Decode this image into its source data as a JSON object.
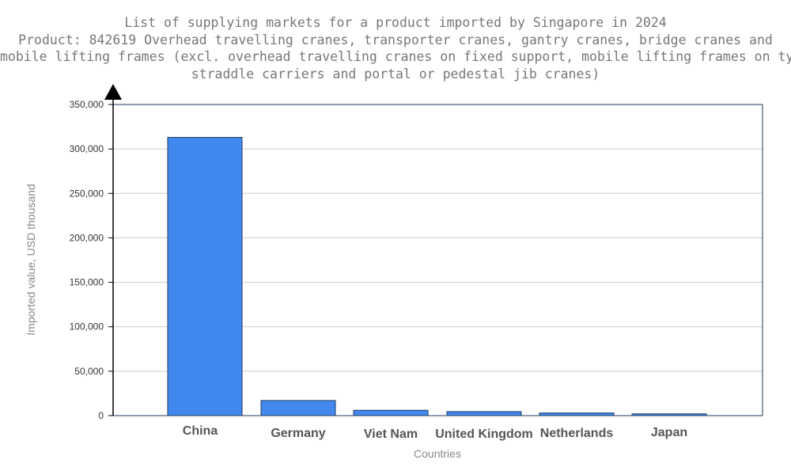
{
  "chart_data": {
    "type": "bar",
    "title": "List of supplying markets for a product imported by Singapore in 2024",
    "subtitle_lines": [
      "Product: 842619 Overhead travelling cranes, transporter cranes, gantry cranes, bridge cranes and",
      "mobile lifting frames (excl. overhead travelling cranes on fixed support, mobile lifting frames on tyres,",
      "straddle carriers and portal or pedestal jib cranes)"
    ],
    "xlabel": "Countries",
    "ylabel": "Imported value, USD thousand",
    "categories": [
      "China",
      "Germany",
      "Viet Nam",
      "United Kingdom",
      "Netherlands",
      "Japan"
    ],
    "values": [
      313000,
      17000,
      6000,
      4500,
      3000,
      2000
    ],
    "ylim": [
      0,
      350000
    ],
    "yticks": [
      0,
      50000,
      100000,
      150000,
      200000,
      250000,
      300000,
      350000
    ],
    "ytick_labels": [
      "0",
      "50,000",
      "100,000",
      "150,000",
      "200,000",
      "250,000",
      "300,000",
      "350,000"
    ],
    "grid": true,
    "bar_color": "#4289ef"
  }
}
